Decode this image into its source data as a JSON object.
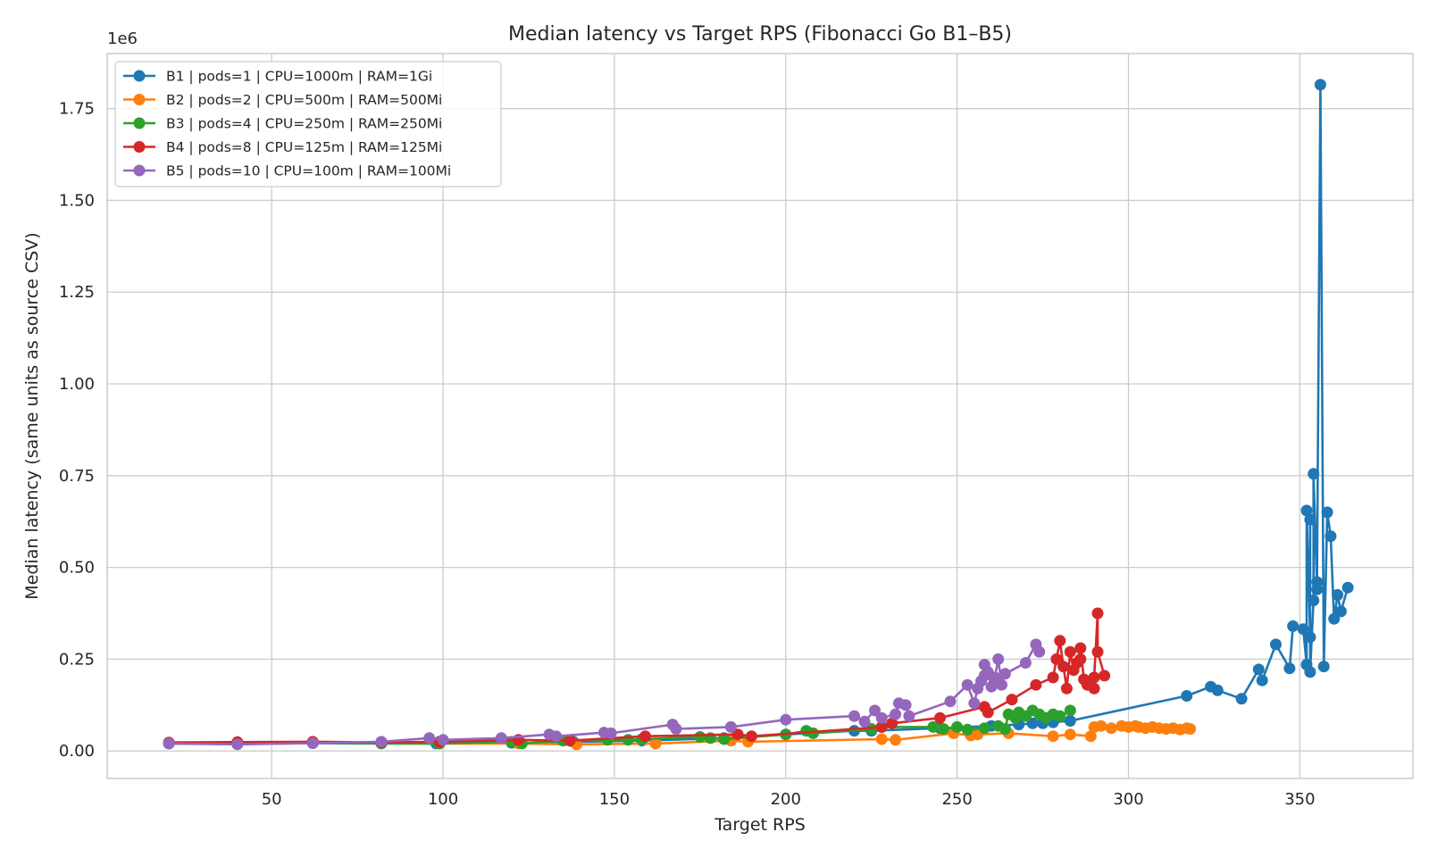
{
  "chart_data": {
    "type": "line",
    "title": "Median latency vs Target RPS (Fibonacci Go B1–B5)",
    "xlabel": "Target RPS",
    "ylabel": "Median latency (same units as source CSV)",
    "y_offset_label": "1e6",
    "xlim": [
      2,
      383
    ],
    "ylim": [
      -75000,
      1900000
    ],
    "xticks": [
      50,
      100,
      150,
      200,
      250,
      300,
      350
    ],
    "xtick_labels": [
      "50",
      "100",
      "150",
      "200",
      "250",
      "300",
      "350"
    ],
    "yticks": [
      0,
      250000,
      500000,
      750000,
      1000000,
      1250000,
      1500000,
      1750000
    ],
    "ytick_labels": [
      "0.00",
      "0.25",
      "0.50",
      "0.75",
      "1.00",
      "1.25",
      "1.50",
      "1.75"
    ],
    "grid": true,
    "legend_position": "top-left",
    "series": [
      {
        "name": "B1 | pods=1 | CPU=1000m | RAM=1Gi",
        "color": "#1f77b4",
        "points": [
          [
            20,
            20000
          ],
          [
            40,
            19000
          ],
          [
            62,
            21000
          ],
          [
            82,
            20000
          ],
          [
            98,
            20000
          ],
          [
            120,
            22000
          ],
          [
            122,
            21000
          ],
          [
            138,
            25000
          ],
          [
            158,
            28000
          ],
          [
            182,
            35000
          ],
          [
            200,
            45000
          ],
          [
            220,
            55000
          ],
          [
            225,
            55000
          ],
          [
            245,
            62000
          ],
          [
            260,
            68000
          ],
          [
            268,
            72000
          ],
          [
            272,
            75000
          ],
          [
            275,
            75000
          ],
          [
            278,
            78000
          ],
          [
            283,
            82000
          ],
          [
            317,
            150000
          ],
          [
            324,
            175000
          ],
          [
            326,
            165000
          ],
          [
            333,
            142000
          ],
          [
            338,
            222000
          ],
          [
            339,
            192000
          ],
          [
            343,
            290000
          ],
          [
            347,
            225000
          ],
          [
            348,
            340000
          ],
          [
            351,
            332000
          ],
          [
            352,
            235000
          ],
          [
            352,
            655000
          ],
          [
            353,
            310000
          ],
          [
            353,
            630000
          ],
          [
            353,
            215000
          ],
          [
            354,
            410000
          ],
          [
            354,
            755000
          ],
          [
            355,
            440000
          ],
          [
            355,
            460000
          ],
          [
            356,
            1815000
          ],
          [
            357,
            230000
          ],
          [
            358,
            650000
          ],
          [
            359,
            585000
          ],
          [
            360,
            360000
          ],
          [
            361,
            425000
          ],
          [
            362,
            380000
          ],
          [
            364,
            445000
          ]
        ]
      },
      {
        "name": "B2 | pods=2 | CPU=500m | RAM=500Mi",
        "color": "#ff7f0e",
        "points": [
          [
            20,
            22000
          ],
          [
            40,
            21000
          ],
          [
            62,
            22000
          ],
          [
            82,
            21000
          ],
          [
            99,
            20000
          ],
          [
            122,
            20000
          ],
          [
            139,
            18000
          ],
          [
            162,
            20000
          ],
          [
            184,
            28000
          ],
          [
            189,
            25000
          ],
          [
            228,
            32000
          ],
          [
            232,
            30000
          ],
          [
            249,
            48000
          ],
          [
            254,
            42000
          ],
          [
            256,
            45000
          ],
          [
            265,
            48000
          ],
          [
            278,
            40000
          ],
          [
            283,
            45000
          ],
          [
            289,
            40000
          ],
          [
            290,
            65000
          ],
          [
            292,
            68000
          ],
          [
            295,
            62000
          ],
          [
            298,
            68000
          ],
          [
            300,
            65000
          ],
          [
            302,
            68000
          ],
          [
            303,
            65000
          ],
          [
            305,
            62000
          ],
          [
            307,
            65000
          ],
          [
            309,
            62000
          ],
          [
            311,
            60000
          ],
          [
            313,
            62000
          ],
          [
            315,
            58000
          ],
          [
            317,
            62000
          ],
          [
            318,
            60000
          ]
        ]
      },
      {
        "name": "B3 | pods=4 | CPU=250m | RAM=250Mi",
        "color": "#2ca02c",
        "points": [
          [
            20,
            22000
          ],
          [
            40,
            21000
          ],
          [
            62,
            22000
          ],
          [
            82,
            21000
          ],
          [
            99,
            20000
          ],
          [
            120,
            25000
          ],
          [
            123,
            20000
          ],
          [
            135,
            28000
          ],
          [
            148,
            30000
          ],
          [
            154,
            30000
          ],
          [
            158,
            32000
          ],
          [
            175,
            38000
          ],
          [
            178,
            35000
          ],
          [
            182,
            32000
          ],
          [
            200,
            45000
          ],
          [
            206,
            55000
          ],
          [
            208,
            48000
          ],
          [
            225,
            60000
          ],
          [
            228,
            65000
          ],
          [
            243,
            65000
          ],
          [
            246,
            60000
          ],
          [
            250,
            65000
          ],
          [
            253,
            58000
          ],
          [
            258,
            62000
          ],
          [
            262,
            68000
          ],
          [
            264,
            60000
          ],
          [
            265,
            100000
          ],
          [
            267,
            90000
          ],
          [
            268,
            105000
          ],
          [
            270,
            95000
          ],
          [
            272,
            110000
          ],
          [
            274,
            100000
          ],
          [
            276,
            90000
          ],
          [
            278,
            100000
          ],
          [
            280,
            95000
          ],
          [
            283,
            110000
          ]
        ]
      },
      {
        "name": "B4 | pods=8 | CPU=125m | RAM=125Mi",
        "color": "#d62728",
        "points": [
          [
            20,
            23000
          ],
          [
            40,
            24000
          ],
          [
            62,
            25000
          ],
          [
            82,
            23000
          ],
          [
            99,
            25000
          ],
          [
            122,
            30000
          ],
          [
            137,
            28000
          ],
          [
            159,
            40000
          ],
          [
            186,
            45000
          ],
          [
            190,
            40000
          ],
          [
            228,
            65000
          ],
          [
            231,
            75000
          ],
          [
            245,
            90000
          ],
          [
            258,
            120000
          ],
          [
            259,
            105000
          ],
          [
            266,
            140000
          ],
          [
            273,
            180000
          ],
          [
            278,
            200000
          ],
          [
            279,
            250000
          ],
          [
            280,
            300000
          ],
          [
            281,
            230000
          ],
          [
            282,
            170000
          ],
          [
            283,
            270000
          ],
          [
            284,
            220000
          ],
          [
            285,
            240000
          ],
          [
            286,
            250000
          ],
          [
            286,
            280000
          ],
          [
            287,
            195000
          ],
          [
            288,
            180000
          ],
          [
            290,
            170000
          ],
          [
            290,
            200000
          ],
          [
            291,
            375000
          ],
          [
            291,
            270000
          ],
          [
            293,
            205000
          ]
        ]
      },
      {
        "name": "B5 | pods=10 | CPU=100m | RAM=100Mi",
        "color": "#9467bd",
        "points": [
          [
            20,
            20000
          ],
          [
            40,
            18000
          ],
          [
            62,
            21000
          ],
          [
            82,
            25000
          ],
          [
            96,
            35000
          ],
          [
            100,
            30000
          ],
          [
            117,
            35000
          ],
          [
            131,
            45000
          ],
          [
            133,
            40000
          ],
          [
            147,
            50000
          ],
          [
            149,
            48000
          ],
          [
            167,
            72000
          ],
          [
            168,
            60000
          ],
          [
            184,
            65000
          ],
          [
            200,
            85000
          ],
          [
            220,
            95000
          ],
          [
            223,
            80000
          ],
          [
            226,
            110000
          ],
          [
            228,
            90000
          ],
          [
            232,
            100000
          ],
          [
            233,
            130000
          ],
          [
            235,
            125000
          ],
          [
            236,
            95000
          ],
          [
            248,
            135000
          ],
          [
            253,
            180000
          ],
          [
            255,
            130000
          ],
          [
            256,
            170000
          ],
          [
            257,
            190000
          ],
          [
            258,
            235000
          ],
          [
            258,
            205000
          ],
          [
            259,
            215000
          ],
          [
            260,
            175000
          ],
          [
            261,
            200000
          ],
          [
            262,
            250000
          ],
          [
            263,
            180000
          ],
          [
            264,
            210000
          ],
          [
            270,
            240000
          ],
          [
            273,
            290000
          ],
          [
            274,
            270000
          ]
        ]
      }
    ]
  }
}
